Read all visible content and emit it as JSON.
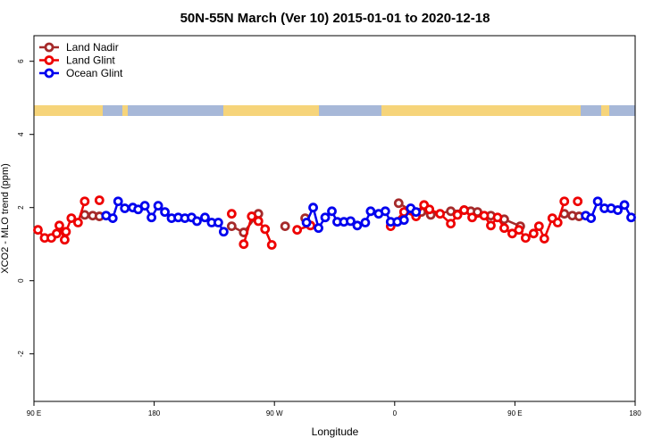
{
  "chart_data": {
    "type": "line",
    "title": "50N-55N March (Ver 10)   2015-01-01 to 2020-12-18",
    "x_label": "Longitude",
    "y_label": "XCO2 - MLO trend (ppm)",
    "xlim": [
      90,
      540
    ],
    "ylim": [
      -3.3,
      6.7
    ],
    "xticks": [
      {
        "value": 90,
        "label": "90 E"
      },
      180,
      {
        "value": 270,
        "label": "90 W"
      },
      {
        "value": 360,
        "label": "0"
      },
      {
        "value": 450,
        "label": "90 E"
      },
      {
        "value": 540,
        "label": "180"
      }
    ],
    "yticks": [
      -2,
      0,
      2,
      4,
      6
    ],
    "legend": "top-left",
    "series": [
      {
        "name": "Land Nadir",
        "color": "#a52a2a",
        "x": [
          128,
          134,
          139,
          190,
          238,
          247,
          258,
          268,
          278,
          285,
          293,
          330,
          363,
          372,
          380,
          387,
          402,
          412,
          417,
          422,
          432,
          442,
          454,
          470,
          487,
          493,
          498
        ],
        "values": [
          1.8,
          1.78,
          1.76,
          null,
          1.49,
          1.32,
          1.83,
          null,
          1.49,
          null,
          1.71,
          null,
          2.12,
          1.93,
          1.88,
          1.8,
          1.9,
          1.93,
          1.9,
          1.88,
          1.78,
          1.68,
          1.49,
          null,
          1.83,
          1.78,
          1.76
        ]
      },
      {
        "name": "Land Glint",
        "color": "#ee0000",
        "x": [
          93,
          98,
          103,
          107,
          109,
          113,
          114,
          118,
          123,
          128,
          131,
          139,
          190,
          238,
          243,
          247,
          253,
          258,
          263,
          268,
          275,
          287,
          297,
          320,
          357,
          367,
          376,
          382,
          386,
          394,
          402,
          407,
          412,
          418,
          427,
          432,
          437,
          442,
          448,
          453,
          458,
          464,
          468,
          472,
          478,
          482,
          487,
          492,
          497
        ],
        "values": [
          1.39,
          1.17,
          1.17,
          1.29,
          1.51,
          1.12,
          1.34,
          1.71,
          1.59,
          2.17,
          null,
          2.2,
          null,
          1.83,
          null,
          1.0,
          1.76,
          1.63,
          1.41,
          0.98,
          null,
          1.39,
          1.51,
          null,
          1.49,
          1.88,
          1.76,
          2.07,
          1.95,
          1.83,
          1.56,
          1.8,
          1.93,
          1.73,
          1.78,
          1.51,
          1.73,
          1.44,
          1.29,
          1.39,
          1.17,
          1.29,
          1.49,
          1.15,
          1.71,
          1.59,
          2.17,
          null,
          2.17
        ]
      },
      {
        "name": "Ocean Glint",
        "color": "#0000ee",
        "x": [
          144,
          149,
          153,
          158,
          164,
          168,
          173,
          178,
          183,
          188,
          193,
          198,
          203,
          208,
          212,
          218,
          223,
          228,
          232,
          260,
          294,
          299,
          303,
          308,
          313,
          317,
          322,
          327,
          332,
          338,
          342,
          348,
          353,
          357,
          362,
          367,
          372,
          376,
          420,
          503,
          507,
          512,
          517,
          522,
          527,
          532,
          537
        ],
        "values": [
          1.78,
          1.71,
          2.17,
          1.98,
          2.0,
          1.95,
          2.05,
          1.73,
          2.05,
          1.88,
          1.71,
          1.73,
          1.71,
          1.73,
          1.63,
          1.73,
          1.59,
          1.59,
          1.34,
          null,
          1.59,
          2.0,
          1.44,
          1.73,
          1.9,
          1.61,
          1.61,
          1.63,
          1.51,
          1.59,
          1.9,
          1.83,
          1.9,
          1.61,
          1.61,
          1.66,
          1.98,
          1.88,
          null,
          1.78,
          1.71,
          2.17,
          1.98,
          1.98,
          1.93,
          2.07,
          1.73
        ]
      }
    ]
  }
}
